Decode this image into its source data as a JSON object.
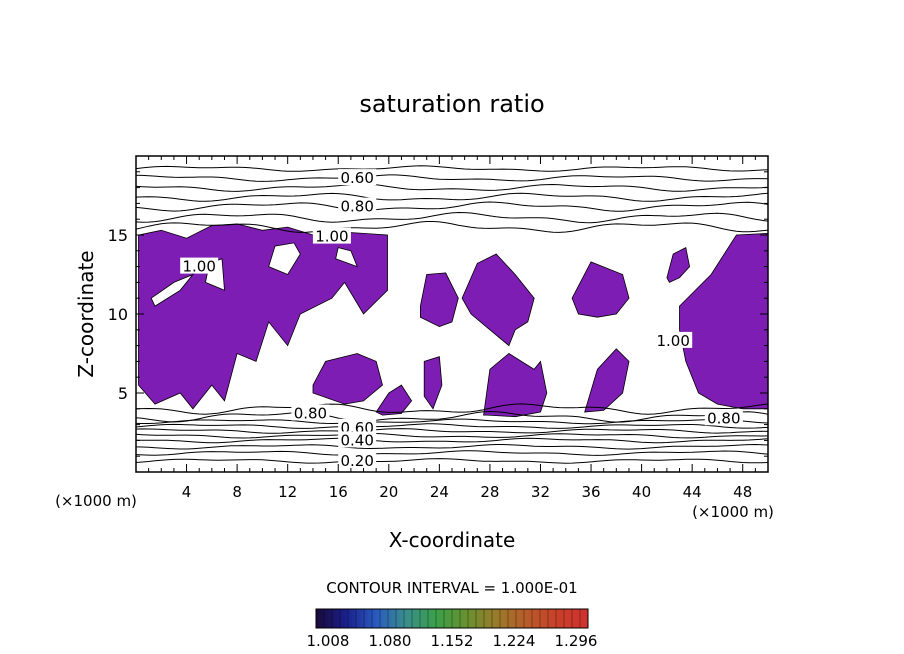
{
  "chart_data": {
    "type": "contour",
    "title": "saturation ratio",
    "xlabel": "X-coordinate",
    "ylabel": "Z-coordinate",
    "x_unit": "(×1000 m)",
    "y_unit": "(×1000 m)",
    "xlim": [
      0,
      50
    ],
    "ylim": [
      0,
      20
    ],
    "x_ticks": [
      4,
      8,
      12,
      16,
      20,
      24,
      28,
      32,
      36,
      40,
      44,
      48
    ],
    "y_ticks": [
      5,
      10,
      15
    ],
    "contour_interval_text": "CONTOUR INTERVAL = 1.000E-01",
    "contour_labels": [
      {
        "text": "0.60",
        "x": 17.5,
        "y": 18.6
      },
      {
        "text": "0.80",
        "x": 17.5,
        "y": 16.8
      },
      {
        "text": "1.00",
        "x": 15.5,
        "y": 14.9
      },
      {
        "text": "1.00",
        "x": 5.0,
        "y": 13.0
      },
      {
        "text": "1.00",
        "x": 42.5,
        "y": 8.3
      },
      {
        "text": "0.80",
        "x": 13.8,
        "y": 3.7
      },
      {
        "text": "0.80",
        "x": 46.5,
        "y": 3.4
      },
      {
        "text": "0.60",
        "x": 17.5,
        "y": 2.8
      },
      {
        "text": "0.40",
        "x": 17.5,
        "y": 2.0
      },
      {
        "text": "0.20",
        "x": 17.5,
        "y": 0.7
      }
    ],
    "upper_contour_levels_z": [
      19.2,
      18.6,
      18.0,
      17.4,
      16.8,
      16.1,
      15.5
    ],
    "lower_contour_levels_z": [
      4.0,
      3.5,
      3.2,
      2.9,
      2.6,
      2.3,
      2.0,
      1.6,
      1.2,
      0.7
    ],
    "supersaturated_regions": [
      {
        "x": [
          0.2,
          2.0,
          4.0,
          6.0,
          8.0,
          10.0,
          12.0,
          14.0,
          16.0,
          18.0,
          19.9,
          19.9,
          18.0,
          16.5,
          15.5,
          13.0,
          12.0,
          10.5,
          9.5,
          8.0,
          7.0,
          6.0,
          4.5,
          3.5,
          1.5,
          0.2
        ],
        "y": [
          15.0,
          15.3,
          14.8,
          15.6,
          15.7,
          15.3,
          15.5,
          15.0,
          15.2,
          15.1,
          15.0,
          11.5,
          10.0,
          12.0,
          11.0,
          10.0,
          8.0,
          9.5,
          7.0,
          7.5,
          4.5,
          5.5,
          4.0,
          5.0,
          4.3,
          5.5
        ]
      },
      {
        "x": [
          14.0,
          15.0,
          17.5,
          19.0,
          19.5,
          18.0,
          16.5,
          14.0
        ],
        "y": [
          5.5,
          7.0,
          7.5,
          7.0,
          5.5,
          4.5,
          4.3,
          5.0
        ]
      },
      {
        "x": [
          19.0,
          20.0,
          21.0,
          21.8,
          21.0,
          19.5
        ],
        "y": [
          3.8,
          5.0,
          5.5,
          4.5,
          3.7,
          3.6
        ]
      },
      {
        "x": [
          22.8,
          24.0,
          24.2,
          23.5,
          22.8
        ],
        "y": [
          7.0,
          7.3,
          5.5,
          4.0,
          4.8
        ]
      },
      {
        "x": [
          22.5,
          23.0,
          24.5,
          25.5,
          25.0,
          24.0,
          22.5
        ],
        "y": [
          10.5,
          12.5,
          12.6,
          11.0,
          9.5,
          9.2,
          9.8
        ]
      },
      {
        "x": [
          25.8,
          27.0,
          28.5,
          30.0,
          31.5,
          31.0,
          30.0,
          29.5,
          28.0,
          26.5
        ],
        "y": [
          11.0,
          13.2,
          13.8,
          12.5,
          11.0,
          9.5,
          9.0,
          8.0,
          9.0,
          10.0
        ]
      },
      {
        "x": [
          27.5,
          28.0,
          29.5,
          31.5,
          32.0,
          32.5,
          32.0,
          30.0,
          27.8
        ],
        "y": [
          3.6,
          6.5,
          7.5,
          6.5,
          7.0,
          5.0,
          3.8,
          3.5,
          3.6
        ]
      },
      {
        "x": [
          34.5,
          36.0,
          38.5,
          39.0,
          38.0,
          36.5,
          35.0,
          34.5
        ],
        "y": [
          11.0,
          13.3,
          12.5,
          11.0,
          10.0,
          9.8,
          10.0,
          11.0
        ]
      },
      {
        "x": [
          35.5,
          36.5,
          38.0,
          39.0,
          38.5,
          37.0,
          35.5
        ],
        "y": [
          3.8,
          6.5,
          7.8,
          7.0,
          5.0,
          3.9,
          3.8
        ]
      },
      {
        "x": [
          43.0,
          45.5,
          47.5,
          50.0,
          50.0,
          48.0,
          46.0,
          44.5,
          43.5,
          43.0
        ],
        "y": [
          10.5,
          12.5,
          15.0,
          15.1,
          4.0,
          4.0,
          4.3,
          5.0,
          7.0,
          9.0
        ]
      },
      {
        "x": [
          42.0,
          42.5,
          43.5,
          43.8,
          43.0,
          42.2
        ],
        "y": [
          12.3,
          13.8,
          14.2,
          13.0,
          12.3,
          12.0
        ]
      }
    ],
    "interior_holes": [
      {
        "x": [
          1.5,
          3.5,
          5.0,
          4.5,
          3.0,
          1.2
        ],
        "y": [
          10.5,
          11.5,
          13.0,
          12.5,
          12.0,
          11.0
        ]
      },
      {
        "x": [
          5.5,
          7.0,
          6.8,
          5.8
        ],
        "y": [
          12.0,
          11.5,
          13.5,
          13.2
        ]
      },
      {
        "x": [
          10.5,
          12.0,
          13.0,
          12.5,
          11.0
        ],
        "y": [
          13.0,
          12.5,
          13.8,
          14.5,
          14.3
        ]
      },
      {
        "x": [
          15.8,
          17.5,
          17.0,
          16.0
        ],
        "y": [
          13.5,
          13.0,
          14.0,
          14.2
        ]
      }
    ],
    "colorbar": {
      "ticks": [
        "1.008",
        "1.080",
        "1.152",
        "1.224",
        "1.296"
      ],
      "colors": [
        "#1a0a3a",
        "#1a1f8c",
        "#2a5bc0",
        "#3a8e8a",
        "#3aa048",
        "#6a9030",
        "#9a7a2a",
        "#b85a2a",
        "#c8402a",
        "#d03030"
      ]
    },
    "colors": {
      "fill": "#7d1db3",
      "contour": "#000000"
    }
  }
}
